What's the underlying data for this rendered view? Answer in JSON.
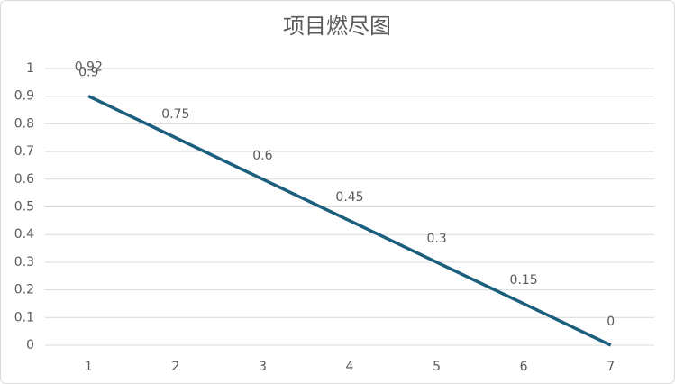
{
  "chart_data": {
    "type": "line",
    "title": "项目燃尽图",
    "categories": [
      "1",
      "2",
      "3",
      "4",
      "5",
      "6",
      "7"
    ],
    "series": [
      {
        "color": "#1b5e7d",
        "values": [
          0.9,
          0.75,
          0.6,
          0.45,
          0.3,
          0.15,
          0
        ]
      },
      {
        "color": "#1b5e7d",
        "values": [
          0.92,
          null,
          null,
          null,
          null,
          null,
          null
        ]
      }
    ],
    "ylim": [
      0,
      1
    ],
    "yticks": [
      0,
      0.1,
      0.2,
      0.3,
      0.4,
      0.5,
      0.6,
      0.7,
      0.8,
      0.9,
      1
    ],
    "grid": true
  }
}
